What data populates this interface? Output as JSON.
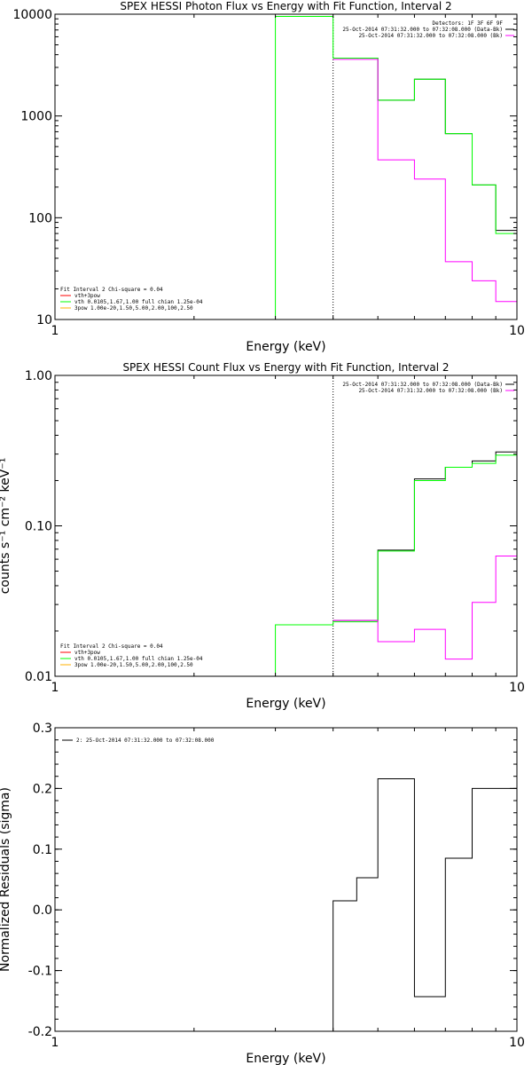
{
  "chart_data": [
    {
      "type": "line",
      "title": "SPEX HESSI Photon Flux vs Energy with Fit Function, Interval 2",
      "xlabel": "Energy (keV)",
      "ylabel": "",
      "xscale": "log",
      "yscale": "log",
      "xlim": [
        1,
        10
      ],
      "ylim": [
        10,
        10000
      ],
      "x_ticks": [
        {
          "v": 1,
          "label": "1"
        },
        {
          "v": 10,
          "label": "10"
        }
      ],
      "y_ticks": [
        {
          "v": 10,
          "label": "10"
        },
        {
          "v": 100,
          "label": "100"
        },
        {
          "v": 1000,
          "label": "1000"
        },
        {
          "v": 10000,
          "label": "10000"
        }
      ],
      "bin_edges": [
        3.0,
        4.0,
        5.0,
        6.0,
        7.0,
        8.0,
        9.0,
        10.0
      ],
      "series": [
        {
          "color": "#000000",
          "values": [
            null,
            3700,
            1430,
            2300,
            670,
            210,
            75
          ]
        },
        {
          "color": "#00ff00",
          "values": [
            9500,
            3700,
            1430,
            2300,
            670,
            210,
            70
          ]
        },
        {
          "color": "#ff00ff",
          "values": [
            null,
            3600,
            370,
            240,
            37,
            24,
            15
          ]
        }
      ],
      "vline": {
        "x": 4.0,
        "style": "dotted"
      },
      "info_box": {
        "lines": [
          {
            "text": "Detectors: 1F 3F 6F 9F",
            "color": ""
          },
          {
            "text": "25-Oct-2014 07:31:32.000 to 07:32:08.000 (Data-Bk)",
            "color": "#000000"
          },
          {
            "text": "25-Oct-2014 07:31:32.000 to 07:32:08.000 (Bk)",
            "color": "#ff00ff"
          }
        ],
        "placement": "top-right"
      },
      "legend": {
        "header": "Fit Interval 2   Chi-square = 0.04",
        "entries": [
          {
            "label": "vth+3pow",
            "color": "#ff0000"
          },
          {
            "label": "vth 0.0105,1.67,1.00  full chian 1.25e-04",
            "color": "#00ff00"
          },
          {
            "label": "3pow 1.00e-20,1.50,5.00,2.00,100,2.50",
            "color": "#ffb000"
          }
        ],
        "placement": "bottom-left"
      }
    },
    {
      "type": "line",
      "title": "SPEX HESSI Count Flux vs Energy with Fit Function, Interval 2",
      "xlabel": "Energy (keV)",
      "ylabel": "counts s⁻¹ cm⁻² keV⁻¹",
      "xscale": "log",
      "yscale": "log",
      "xlim": [
        1,
        10
      ],
      "ylim": [
        0.01,
        1.0
      ],
      "x_ticks": [
        {
          "v": 1,
          "label": "1"
        },
        {
          "v": 10,
          "label": "10"
        }
      ],
      "y_ticks": [
        {
          "v": 0.01,
          "label": "0.01"
        },
        {
          "v": 0.1,
          "label": "0.10"
        },
        {
          "v": 1.0,
          "label": "1.00"
        }
      ],
      "bin_edges": [
        3.0,
        4.0,
        5.0,
        6.0,
        7.0,
        8.0,
        9.0,
        10.0
      ],
      "series": [
        {
          "color": "#000000",
          "values": [
            null,
            0.0235,
            0.069,
            0.205,
            0.245,
            0.27,
            0.31
          ]
        },
        {
          "color": "#00ff00",
          "values": [
            0.022,
            0.023,
            0.068,
            0.2,
            0.245,
            0.26,
            0.295
          ]
        },
        {
          "color": "#ff00ff",
          "values": [
            null,
            0.0235,
            0.017,
            0.0205,
            0.013,
            0.031,
            0.063
          ]
        }
      ],
      "vline": {
        "x": 4.0,
        "style": "dotted"
      },
      "info_box": {
        "lines": [
          {
            "text": "25-Oct-2014 07:31:32.000 to 07:32:08.000 (Data-Bk)",
            "color": "#000000"
          },
          {
            "text": "25-Oct-2014 07:31:32.000 to 07:32:08.000 (Bk)",
            "color": "#ff00ff"
          }
        ],
        "placement": "top-right"
      },
      "legend": {
        "header": "Fit Interval 2   Chi-square = 0.04",
        "entries": [
          {
            "label": "vth+3pow",
            "color": "#ff0000"
          },
          {
            "label": "vth 0.0105,1.67,1.00  full chian 1.25e-04",
            "color": "#00ff00"
          },
          {
            "label": "3pow 1.00e-20,1.50,5.00,2.00,100,2.50",
            "color": "#ffb000"
          }
        ],
        "placement": "bottom-left"
      }
    },
    {
      "type": "line",
      "title": "",
      "xlabel": "Energy (keV)",
      "ylabel": "Normalized Residuals (sigma)",
      "xscale": "log",
      "yscale": "linear",
      "xlim": [
        1,
        10
      ],
      "ylim": [
        -0.2,
        0.3
      ],
      "x_ticks": [
        {
          "v": 1,
          "label": "1"
        },
        {
          "v": 10,
          "label": "10"
        }
      ],
      "y_ticks": [
        {
          "v": -0.2,
          "label": "-0.2"
        },
        {
          "v": -0.1,
          "label": "-0.1"
        },
        {
          "v": 0.0,
          "label": "0.0"
        },
        {
          "v": 0.1,
          "label": "0.1"
        },
        {
          "v": 0.2,
          "label": "0.2"
        },
        {
          "v": 0.3,
          "label": "0.3"
        }
      ],
      "bin_edges": [
        4.0,
        4.5,
        5.0,
        6.0,
        7.0,
        8.0,
        9.0,
        10.0
      ],
      "series": [
        {
          "color": "#000000",
          "values": [
            0.015,
            0.053,
            0.216,
            -0.143,
            0.085,
            0.2,
            0.2
          ]
        }
      ],
      "drop_to_bottom_at": 4.0,
      "legend": {
        "header": "",
        "entries": [
          {
            "label": "2: 25-Oct-2014 07:31:32.000 to 07:32:08.000",
            "color": "#000000"
          }
        ],
        "placement": "top-left"
      }
    }
  ]
}
